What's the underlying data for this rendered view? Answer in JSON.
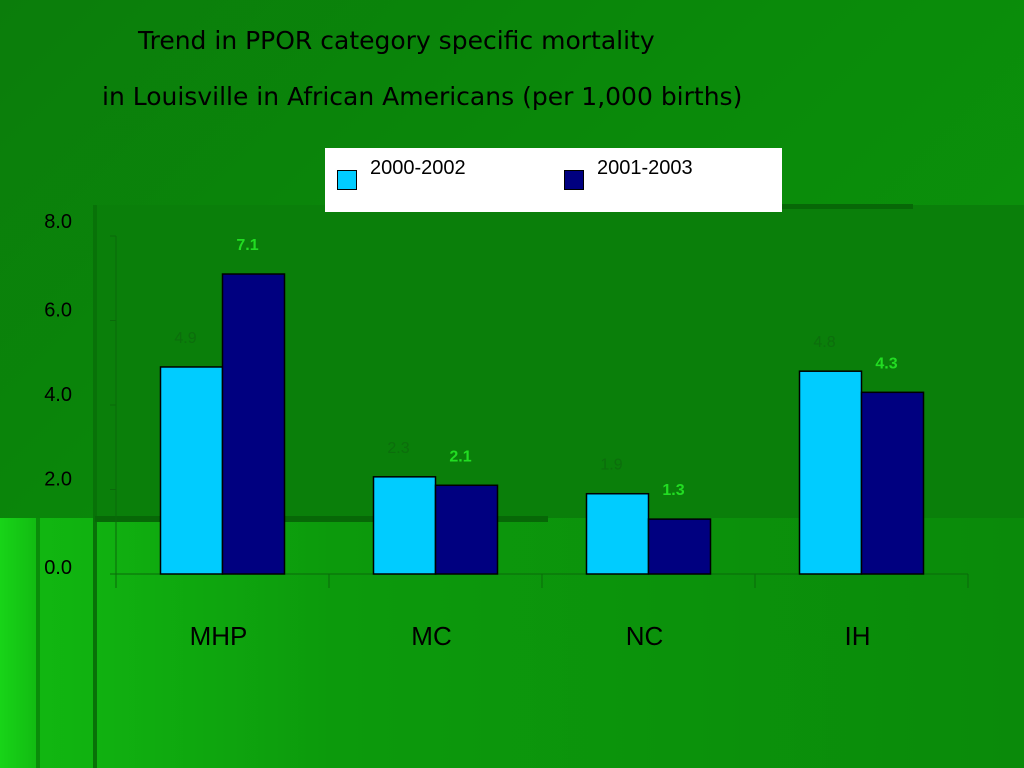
{
  "title": {
    "line1": "Trend in  PPOR category specific mortality",
    "line2": "in Louisville in African Americans (per 1,000 births)"
  },
  "legend": [
    {
      "label": "2000-2002",
      "color": "#00ccff"
    },
    {
      "label": "2001-2003",
      "color": "#000080"
    }
  ],
  "chart_data": {
    "type": "bar",
    "categories": [
      "MHP",
      "MC",
      "NC",
      "IH"
    ],
    "series": [
      {
        "name": "2000-2002",
        "values": [
          4.9,
          2.3,
          1.9,
          4.8
        ],
        "color": "#00ccff",
        "label_color": "#0c6e0c"
      },
      {
        "name": "2001-2003",
        "values": [
          7.1,
          2.1,
          1.3,
          4.3
        ],
        "color": "#000080",
        "label_color": "#22dd22"
      }
    ],
    "y_ticks": [
      "8.0",
      "6.0",
      "4.0",
      "2.0",
      "0.0"
    ],
    "ylim": [
      0,
      8
    ],
    "legend_position": "top",
    "grid": false
  }
}
